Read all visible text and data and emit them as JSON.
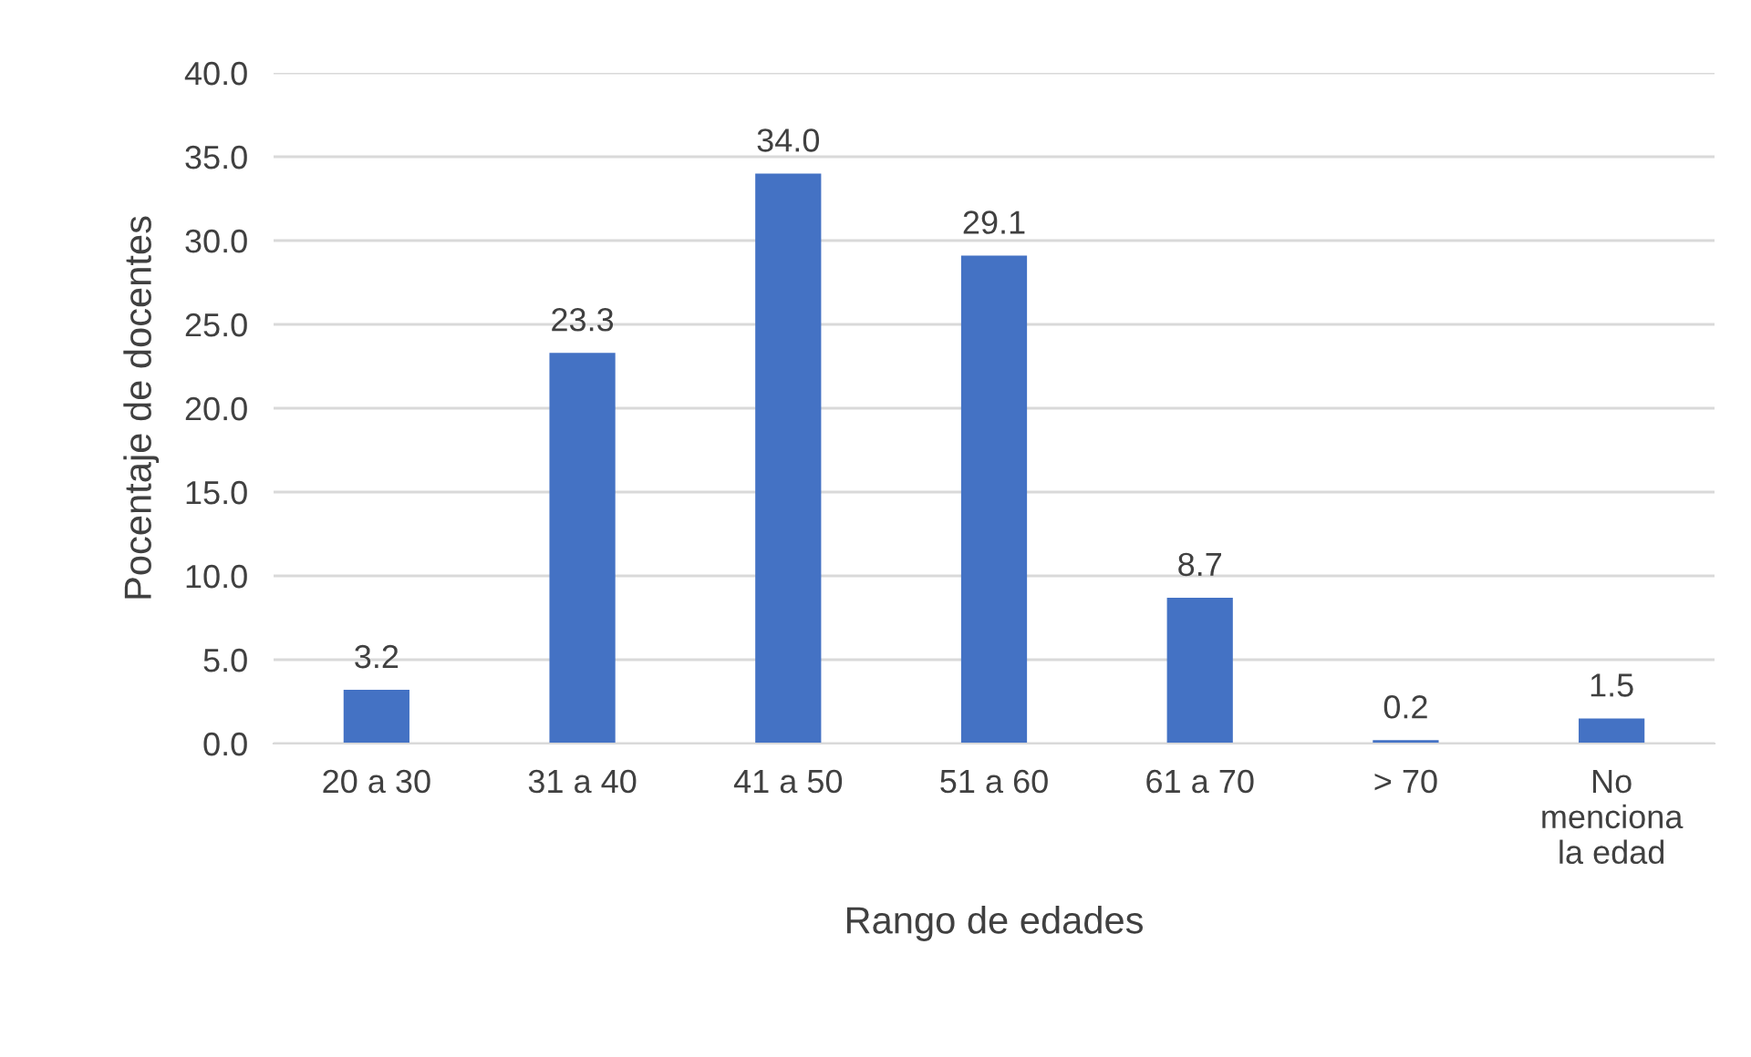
{
  "chart_data": {
    "type": "bar",
    "categories": [
      "20 a 30",
      "31 a 40",
      "41 a 50",
      "51 a 60",
      "61 a 70",
      "> 70",
      "No menciona la edad"
    ],
    "values": [
      3.2,
      23.3,
      34.0,
      29.1,
      8.7,
      0.2,
      1.5
    ],
    "color": "#4472c4",
    "xlabel": "Rango de edades",
    "ylabel": "Pocentaje de docentes",
    "ylim": [
      0,
      40
    ],
    "yticks": [
      {
        "value": 0,
        "label": "0.0"
      },
      {
        "value": 5,
        "label": "5.0"
      },
      {
        "value": 10,
        "label": "10.0"
      },
      {
        "value": 15,
        "label": "15.0"
      },
      {
        "value": 20,
        "label": "20.0"
      },
      {
        "value": 25,
        "label": "25.0"
      },
      {
        "value": 30,
        "label": "30.0"
      },
      {
        "value": 35,
        "label": "35.0"
      },
      {
        "value": 40,
        "label": "40.0"
      }
    ],
    "value_labels": [
      "3.2",
      "23.3",
      "34.0",
      "29.1",
      "8.7",
      "0.2",
      "1.5"
    ],
    "grid": "y",
    "legend": false
  }
}
